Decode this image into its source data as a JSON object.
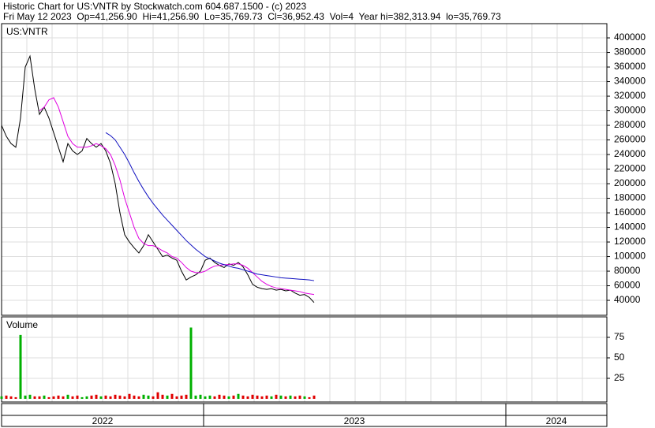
{
  "chart_data": [
    {
      "type": "line",
      "title": "Historic Chart for US:VNTR by Stockwatch.com 604.687.1500 - (c) 2023",
      "subtitle": "Fri May 12 2023  Op=41,256.90  Hi=41,256.90  Lo=35,769.73  Cl=36,952.43  Vol=4  Year hi=382,313.94  lo=35,769.73",
      "symbol": "US:VNTR",
      "ylim": [
        19500,
        419500
      ],
      "yticks": [
        40000,
        60000,
        80000,
        100000,
        120000,
        140000,
        160000,
        180000,
        200000,
        220000,
        240000,
        260000,
        280000,
        300000,
        320000,
        340000,
        360000,
        380000,
        400000
      ],
      "grid": true,
      "series": [
        {
          "color": "#000000",
          "values": [
            280000,
            265000,
            255000,
            250000,
            290000,
            360000,
            375000,
            330000,
            295000,
            305000,
            290000,
            270000,
            250000,
            230000,
            255000,
            245000,
            240000,
            245000,
            262000,
            255000,
            250000,
            255000,
            245000,
            228000,
            200000,
            160000,
            130000,
            120000,
            112000,
            105000,
            115000,
            130000,
            120000,
            110000,
            100000,
            102000,
            98000,
            95000,
            80000,
            68000,
            72000,
            75000,
            80000,
            95000,
            98000,
            92000,
            88000,
            85000,
            90000,
            88000,
            92000,
            86000,
            75000,
            62000,
            58000,
            56000,
            55000,
            56000,
            54000,
            55000,
            53000,
            54000,
            50000,
            47000,
            48000,
            44000,
            37000
          ]
        },
        {
          "color": "#e000e0",
          "values": [
            null,
            null,
            null,
            null,
            null,
            null,
            null,
            null,
            300000,
            305000,
            315000,
            318000,
            305000,
            285000,
            265000,
            255000,
            250000,
            250000,
            250000,
            252000,
            255000,
            252000,
            248000,
            240000,
            225000,
            205000,
            180000,
            160000,
            140000,
            125000,
            118000,
            115000,
            115000,
            112000,
            108000,
            105000,
            100000,
            98000,
            92000,
            85000,
            80000,
            78000,
            78000,
            80000,
            84000,
            87000,
            88000,
            89000,
            89000,
            90000,
            90000,
            88000,
            84000,
            78000,
            72000,
            66000,
            62000,
            59000,
            57000,
            56000,
            55000,
            54000,
            53000,
            52000,
            50000,
            49000,
            48000
          ]
        },
        {
          "color": "#1010c0",
          "values": [
            null,
            null,
            null,
            null,
            null,
            null,
            null,
            null,
            null,
            null,
            null,
            null,
            null,
            null,
            null,
            null,
            null,
            null,
            null,
            null,
            null,
            null,
            270000,
            266000,
            260000,
            250000,
            240000,
            228000,
            215000,
            203000,
            192000,
            182000,
            173000,
            165000,
            157000,
            150000,
            143000,
            136000,
            129000,
            122000,
            116000,
            110000,
            105000,
            100000,
            97000,
            94000,
            91000,
            89000,
            87000,
            85000,
            84000,
            82000,
            80000,
            78000,
            76000,
            75000,
            74000,
            73000,
            72000,
            71000,
            70500,
            70000,
            69500,
            69000,
            68500,
            68000,
            67000
          ]
        }
      ]
    },
    {
      "type": "bar",
      "title": "Volume",
      "ylim": [
        0,
        100
      ],
      "yticks": [
        25,
        50,
        75
      ],
      "up_color": "#00b000",
      "down_color": "#e00000",
      "values": [
        3,
        4,
        3,
        2,
        78,
        4,
        5,
        3,
        3,
        4,
        2,
        3,
        4,
        3,
        5,
        3,
        4,
        2,
        3,
        4,
        5,
        3,
        4,
        3,
        5,
        4,
        3,
        6,
        4,
        3,
        5,
        4,
        3,
        8,
        5,
        4,
        6,
        3,
        4,
        5,
        87,
        4,
        5,
        3,
        4,
        3,
        5,
        4,
        3,
        4,
        6,
        4,
        3,
        5,
        4,
        3,
        4,
        3,
        5,
        4,
        3,
        4,
        3,
        4,
        3,
        2,
        4
      ],
      "x_labels": [
        "2022",
        "2023",
        "2024"
      ]
    }
  ]
}
